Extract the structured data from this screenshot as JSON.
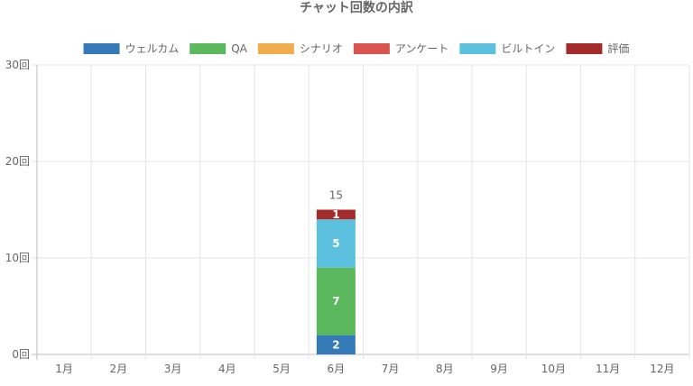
{
  "chart_data": {
    "type": "bar",
    "stacked": true,
    "title": "チャット回数の内訳",
    "categories": [
      "1月",
      "2月",
      "3月",
      "4月",
      "5月",
      "6月",
      "7月",
      "8月",
      "9月",
      "10月",
      "11月",
      "12月"
    ],
    "series": [
      {
        "name": "ウェルカム",
        "color": "#337ab7",
        "values": [
          0,
          0,
          0,
          0,
          0,
          2,
          0,
          0,
          0,
          0,
          0,
          0
        ]
      },
      {
        "name": "QA",
        "color": "#5cb85c",
        "values": [
          0,
          0,
          0,
          0,
          0,
          7,
          0,
          0,
          0,
          0,
          0,
          0
        ]
      },
      {
        "name": "シナリオ",
        "color": "#f0ad4e",
        "values": [
          0,
          0,
          0,
          0,
          0,
          0,
          0,
          0,
          0,
          0,
          0,
          0
        ]
      },
      {
        "name": "アンケート",
        "color": "#d9534f",
        "values": [
          0,
          0,
          0,
          0,
          0,
          0,
          0,
          0,
          0,
          0,
          0,
          0
        ]
      },
      {
        "name": "ビルトイン",
        "color": "#5bc0de",
        "values": [
          0,
          0,
          0,
          0,
          0,
          5,
          0,
          0,
          0,
          0,
          0,
          0
        ]
      },
      {
        "name": "評価",
        "color": "#a52a2a",
        "values": [
          0,
          0,
          0,
          0,
          0,
          1,
          0,
          0,
          0,
          0,
          0,
          0
        ]
      }
    ],
    "totals": [
      null,
      null,
      null,
      null,
      null,
      15,
      null,
      null,
      null,
      null,
      null,
      null
    ],
    "ylim": [
      0,
      30
    ],
    "yticks": [
      {
        "value": 0,
        "label": "0回"
      },
      {
        "value": 10,
        "label": "10回"
      },
      {
        "value": 20,
        "label": "20回"
      },
      {
        "value": 30,
        "label": "30回"
      }
    ],
    "grid": true,
    "legend_position": "top"
  }
}
